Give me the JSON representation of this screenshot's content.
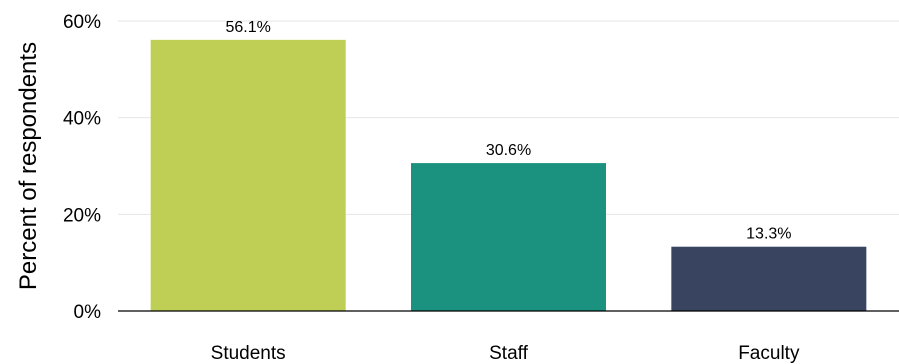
{
  "chart_data": {
    "type": "bar",
    "title": "",
    "xlabel": "",
    "ylabel": "Percent of respondents",
    "categories": [
      "Students",
      "Staff",
      "Faculty"
    ],
    "values": [
      56.1,
      30.6,
      13.3
    ],
    "data_labels": [
      "56.1%",
      "30.6%",
      "13.3%"
    ],
    "colors": [
      "#bfcf55",
      "#1b917f",
      "#394560"
    ],
    "ylim": [
      0,
      60
    ],
    "yticks": [
      0,
      20,
      40,
      60
    ],
    "ytick_labels": [
      "0%",
      "20%",
      "40%",
      "60%"
    ],
    "grid": true,
    "legend": "none"
  }
}
